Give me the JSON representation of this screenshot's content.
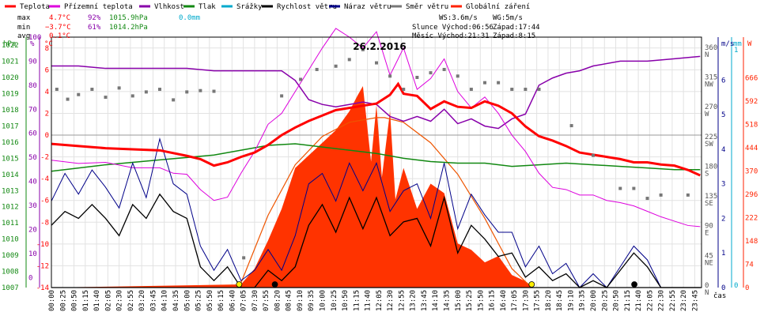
{
  "chart_data": {
    "type": "line",
    "title": "26.2.2016",
    "x_unit": "čas",
    "x_ticks": [
      "00:00",
      "00:25",
      "00:50",
      "01:15",
      "01:40",
      "02:05",
      "02:30",
      "02:55",
      "03:20",
      "03:45",
      "04:10",
      "04:35",
      "05:00",
      "05:25",
      "05:50",
      "06:15",
      "06:40",
      "07:05",
      "07:30",
      "07:55",
      "08:20",
      "08:45",
      "09:10",
      "09:35",
      "10:00",
      "10:25",
      "10:50",
      "11:15",
      "11:40",
      "12:05",
      "12:30",
      "12:55",
      "13:20",
      "13:45",
      "14:10",
      "14:35",
      "15:00",
      "15:25",
      "15:50",
      "16:15",
      "16:40",
      "17:05",
      "17:30",
      "17:55",
      "18:20",
      "18:45",
      "19:10",
      "19:35",
      "20:00",
      "20:25",
      "20:50",
      "21:15",
      "21:40",
      "22:05",
      "22:30",
      "22:55",
      "23:20",
      "23:45"
    ],
    "legend": [
      {
        "name": "Teplota",
        "color": "#ff0000"
      },
      {
        "name": "Přízemní teplota",
        "color": "#dd00dd"
      },
      {
        "name": "Vlhkost",
        "color": "#8800aa"
      },
      {
        "name": "Tlak",
        "color": "#118811"
      },
      {
        "name": "Srážky",
        "color": "#00aacc"
      },
      {
        "name": "Rychlost větru",
        "color": "#000000"
      },
      {
        "name": "Náraz větru",
        "color": "#000088"
      },
      {
        "name": "Směr větru",
        "color": "#777777"
      },
      {
        "name": "Globální záření",
        "color": "#ff2200"
      }
    ],
    "stats": {
      "max": {
        "label": "max",
        "temp": "4.7°C",
        "hum": "92%",
        "press": "1015.9hPa",
        "rain": "0.0mm"
      },
      "min": {
        "label": "min",
        "temp": "−3.7°C",
        "hum": "61%",
        "press": "1014.2hPa"
      },
      "avg": {
        "label": "avg",
        "temp": "0.1°C"
      }
    },
    "info": {
      "ws": "WS:3.6m/s",
      "wg": "WG:5m/s",
      "sun": "Slunce Východ:06:56",
      "sun_set": "Západ:17:44",
      "moon": "Měsíc Východ:21:31",
      "moon_set": "Západ:8:15"
    },
    "axes": {
      "pressure": {
        "unit": "hPa",
        "ticks": [
          "1022",
          "1021",
          "1020",
          "1019",
          "1018",
          "1017",
          "1016",
          "1015",
          "1014",
          "1013",
          "1012",
          "1011",
          "1010",
          "1009",
          "1008",
          "1007"
        ]
      },
      "humidity": {
        "unit": "%",
        "ticks": [
          "100",
          "90",
          "80",
          "70",
          "60",
          "50",
          "40",
          "30",
          "20",
          "10",
          "0"
        ]
      },
      "temperature": {
        "unit": "°C",
        "ticks": [
          "8",
          "6",
          "4",
          "2",
          "0",
          "-2",
          "-4",
          "-6",
          "-8",
          "-10",
          "-12",
          "-14"
        ]
      },
      "wind": {
        "unit": "m/s",
        "ticks": [
          "6",
          "5",
          "4",
          "3",
          "2",
          "1",
          "0"
        ]
      },
      "rain": {
        "unit": "mm",
        "ticks": [
          "1",
          "0"
        ]
      },
      "radiation": {
        "unit": "W",
        "ticks": [
          "666",
          "592",
          "518",
          "444",
          "370",
          "296",
          "222",
          "148",
          "74",
          "0"
        ]
      },
      "direction": {
        "ticks": [
          {
            "deg": "360",
            "dir": "N"
          },
          {
            "deg": "315",
            "dir": "NW"
          },
          {
            "deg": "270",
            "dir": "W"
          },
          {
            "deg": "225",
            "dir": "SW"
          },
          {
            "deg": "180",
            "dir": "S"
          },
          {
            "deg": "135",
            "dir": "SE"
          },
          {
            "deg": "90",
            "dir": "E"
          },
          {
            "deg": "45",
            "dir": "NE"
          },
          {
            "deg": "0",
            "dir": "N"
          }
        ]
      }
    },
    "series": {
      "temperature": {
        "t": [
          0,
          1,
          2,
          3,
          4,
          5,
          5.5,
          6,
          6.5,
          7,
          7.5,
          8,
          8.5,
          9,
          9.5,
          10,
          10.5,
          11,
          11.5,
          12,
          12.5,
          12.8,
          13,
          13.5,
          14,
          14.5,
          15,
          15.5,
          16,
          16.5,
          17,
          17.5,
          18,
          18.5,
          19,
          19.5,
          20,
          20.5,
          21,
          21.5,
          22,
          22.5,
          23,
          23.5,
          23.95
        ],
        "v": [
          -0.8,
          -1.0,
          -1.2,
          -1.3,
          -1.4,
          -1.9,
          -2.2,
          -2.8,
          -2.5,
          -2.0,
          -1.6,
          -0.9,
          0.0,
          0.7,
          1.3,
          1.8,
          2.3,
          2.5,
          2.7,
          2.9,
          3.7,
          4.7,
          3.8,
          3.6,
          2.4,
          3.1,
          2.6,
          2.5,
          3.1,
          2.7,
          2.0,
          0.8,
          -0.1,
          -0.5,
          -1.0,
          -1.6,
          -1.8,
          -2.0,
          -2.2,
          -2.5,
          -2.5,
          -2.7,
          -2.8,
          -3.2,
          -3.7
        ]
      },
      "ground_temp": {
        "t": [
          0,
          1,
          2,
          3,
          4,
          4.5,
          5,
          5.5,
          6,
          6.5,
          7,
          7.5,
          8,
          8.5,
          9,
          9.5,
          10,
          10.5,
          11,
          11.5,
          12,
          12.5,
          13,
          13.5,
          14,
          14.5,
          15,
          15.5,
          16,
          16.5,
          17,
          17.5,
          18,
          18.5,
          19,
          19.5,
          20,
          20.5,
          21,
          21.5,
          22,
          22.5,
          23,
          23.5,
          23.95
        ],
        "v": [
          -2.3,
          -2.6,
          -2.5,
          -3.0,
          -3.0,
          -3.5,
          -3.6,
          -5.0,
          -6.0,
          -5.7,
          -3.5,
          -1.5,
          1.0,
          2.0,
          4.0,
          6.0,
          8.0,
          9.8,
          9.0,
          8.0,
          9.5,
          5.5,
          8.0,
          4.2,
          5.2,
          7.0,
          4.0,
          2.5,
          3.5,
          2.0,
          0.0,
          -1.5,
          -3.5,
          -4.8,
          -5.0,
          -5.5,
          -5.5,
          -6.0,
          -6.2,
          -6.5,
          -7.0,
          -7.5,
          -7.9,
          -8.3,
          -8.4
        ]
      },
      "humidity": {
        "t": [
          0,
          1,
          2,
          3,
          4,
          5,
          6,
          7,
          8,
          8.5,
          9,
          9.5,
          10,
          10.5,
          11,
          11.5,
          12,
          12.5,
          13,
          13.5,
          14,
          14.5,
          15,
          15.5,
          16,
          16.5,
          17,
          17.5,
          18,
          18.5,
          19,
          19.5,
          20,
          21,
          22,
          23,
          23.95
        ],
        "v": [
          88,
          88,
          87,
          87,
          87,
          87,
          86,
          86,
          86,
          86,
          82,
          74,
          72,
          71,
          72,
          73,
          72,
          67,
          65,
          67,
          65,
          70,
          64,
          66,
          63,
          62,
          66,
          68,
          80,
          83,
          85,
          86,
          88,
          90,
          90,
          91,
          92
        ]
      },
      "pressure": {
        "t": [
          0,
          2,
          4,
          6,
          8,
          9,
          10,
          11,
          12,
          13,
          14,
          15,
          16,
          17,
          18,
          19,
          20,
          21,
          22,
          23,
          23.95
        ],
        "v": [
          1014.2,
          1014.6,
          1014.9,
          1015.2,
          1015.8,
          1015.9,
          1015.7,
          1015.5,
          1015.3,
          1015.0,
          1014.8,
          1014.7,
          1014.7,
          1014.5,
          1014.6,
          1014.7,
          1014.6,
          1014.5,
          1014.4,
          1014.3,
          1014.3
        ]
      },
      "wind_speed": {
        "t": [
          0,
          0.5,
          1,
          1.5,
          2,
          2.5,
          3,
          3.5,
          4,
          4.5,
          5,
          5.5,
          6,
          6.5,
          7,
          7.5,
          8,
          8.5,
          9,
          9.5,
          10,
          10.5,
          11,
          11.5,
          12,
          12.5,
          13,
          13.5,
          14,
          14.5,
          15,
          15.5,
          16,
          16.5,
          17,
          17.5,
          18,
          18.5,
          19,
          19.5,
          20,
          20.5,
          21,
          21.5,
          22,
          22.5,
          23,
          23.5,
          23.95
        ],
        "v": [
          1.8,
          2.2,
          2.0,
          2.4,
          2.0,
          1.5,
          2.4,
          2.0,
          2.7,
          2.2,
          2.0,
          0.6,
          0.2,
          0.6,
          0.0,
          0.0,
          0.5,
          0.2,
          0.6,
          1.8,
          2.4,
          1.6,
          2.6,
          1.7,
          2.6,
          1.5,
          1.9,
          2.0,
          1.2,
          2.6,
          1.0,
          1.8,
          1.4,
          0.9,
          1.0,
          0.3,
          0.6,
          0.2,
          0.4,
          0.0,
          0.2,
          0.0,
          0.5,
          1.0,
          0.6,
          0.0,
          0.0,
          0.0,
          0.0
        ]
      },
      "wind_gust": {
        "t": [
          0,
          0.5,
          1,
          1.5,
          2,
          2.5,
          3,
          3.5,
          4,
          4.5,
          5,
          5.5,
          6,
          6.5,
          7,
          7.5,
          8,
          8.5,
          9,
          9.5,
          10,
          10.5,
          11,
          11.5,
          12,
          12.5,
          13,
          13.5,
          14,
          14.5,
          15,
          15.5,
          16,
          16.5,
          17,
          17.5,
          18,
          18.5,
          19,
          19.5,
          20,
          20.5,
          21,
          21.5,
          22,
          22.5,
          23,
          23.5,
          23.95
        ],
        "v": [
          2.5,
          3.3,
          2.7,
          3.4,
          2.9,
          2.3,
          3.6,
          2.6,
          4.3,
          3.0,
          2.7,
          1.2,
          0.5,
          1.1,
          0.2,
          0.5,
          1.1,
          0.5,
          1.5,
          3.0,
          3.3,
          2.5,
          3.6,
          2.8,
          3.6,
          2.2,
          2.8,
          3.0,
          2.0,
          3.6,
          1.7,
          2.7,
          2.1,
          1.6,
          1.6,
          0.6,
          1.2,
          0.4,
          0.7,
          0.0,
          0.4,
          0.0,
          0.6,
          1.2,
          0.8,
          0.0,
          0.0,
          0.0,
          0.0
        ]
      },
      "wind_dir": {
        "t": [
          0.2,
          0.6,
          1.0,
          1.5,
          2.0,
          2.5,
          3.0,
          3.5,
          4.0,
          4.5,
          5.0,
          5.5,
          6.0,
          7.1,
          8.5,
          9.2,
          9.8,
          10.5,
          11.0,
          11.5,
          12.0,
          12.5,
          13.0,
          13.5,
          14.0,
          14.5,
          15.0,
          15.5,
          16.0,
          16.5,
          17.0,
          17.5,
          18.0,
          19.2,
          20.0,
          21.0,
          21.5,
          22.0,
          22.5,
          23.5
        ],
        "v": [
          300,
          285,
          292,
          300,
          288,
          302,
          290,
          296,
          300,
          284,
          296,
          298,
          297,
          45,
          290,
          315,
          330,
          335,
          345,
          360,
          340,
          320,
          300,
          318,
          325,
          330,
          320,
          300,
          310,
          310,
          300,
          300,
          300,
          245,
          200,
          150,
          150,
          135,
          140,
          140
        ]
      },
      "radiation": {
        "t": [
          0,
          7.0,
          7.5,
          8.0,
          8.5,
          9.0,
          9.5,
          10.0,
          10.5,
          11.0,
          11.3,
          11.5,
          11.8,
          12.0,
          12.2,
          12.5,
          12.7,
          13.0,
          13.5,
          14.0,
          14.5,
          15.0,
          15.5,
          16.0,
          16.5,
          17.0,
          17.5,
          17.8,
          23.95
        ],
        "v": [
          0,
          10,
          60,
          150,
          250,
          380,
          420,
          460,
          500,
          560,
          610,
          640,
          400,
          580,
          350,
          560,
          280,
          380,
          250,
          330,
          300,
          140,
          120,
          80,
          100,
          40,
          20,
          0,
          0
        ]
      },
      "sun_curve": {
        "t": [
          6.93,
          8,
          9,
          10,
          11,
          12,
          12.3,
          13,
          14,
          15,
          16,
          17,
          17.73
        ],
        "v": [
          0,
          230,
          390,
          480,
          525,
          540,
          540,
          525,
          460,
          360,
          220,
          60,
          0
        ]
      }
    }
  }
}
